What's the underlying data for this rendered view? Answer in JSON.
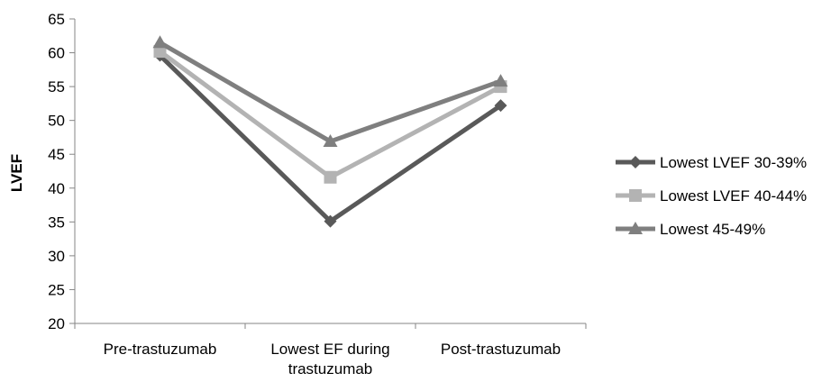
{
  "chart_data": {
    "type": "line",
    "title": "",
    "xlabel": "",
    "ylabel": "LVEF",
    "ylim": [
      20,
      65
    ],
    "ytick_step": 5,
    "categories": [
      [
        "Pre-trastuzumab"
      ],
      [
        "Lowest EF during",
        "trastuzumab"
      ],
      [
        "Post-trastuzumab"
      ]
    ],
    "grid": false,
    "legend_position": "right",
    "series": [
      {
        "name": "Lowest LVEF 30-39%",
        "values": [
          59.6,
          35.1,
          52.2
        ],
        "color": "#595959",
        "marker": "diamond"
      },
      {
        "name": "Lowest LVEF 40-44%",
        "values": [
          60.2,
          41.6,
          55.0
        ],
        "color": "#b3b3b3",
        "marker": "square"
      },
      {
        "name": "Lowest 45-49%",
        "values": [
          61.5,
          46.9,
          55.8
        ],
        "color": "#7f7f7f",
        "marker": "triangle"
      }
    ]
  }
}
